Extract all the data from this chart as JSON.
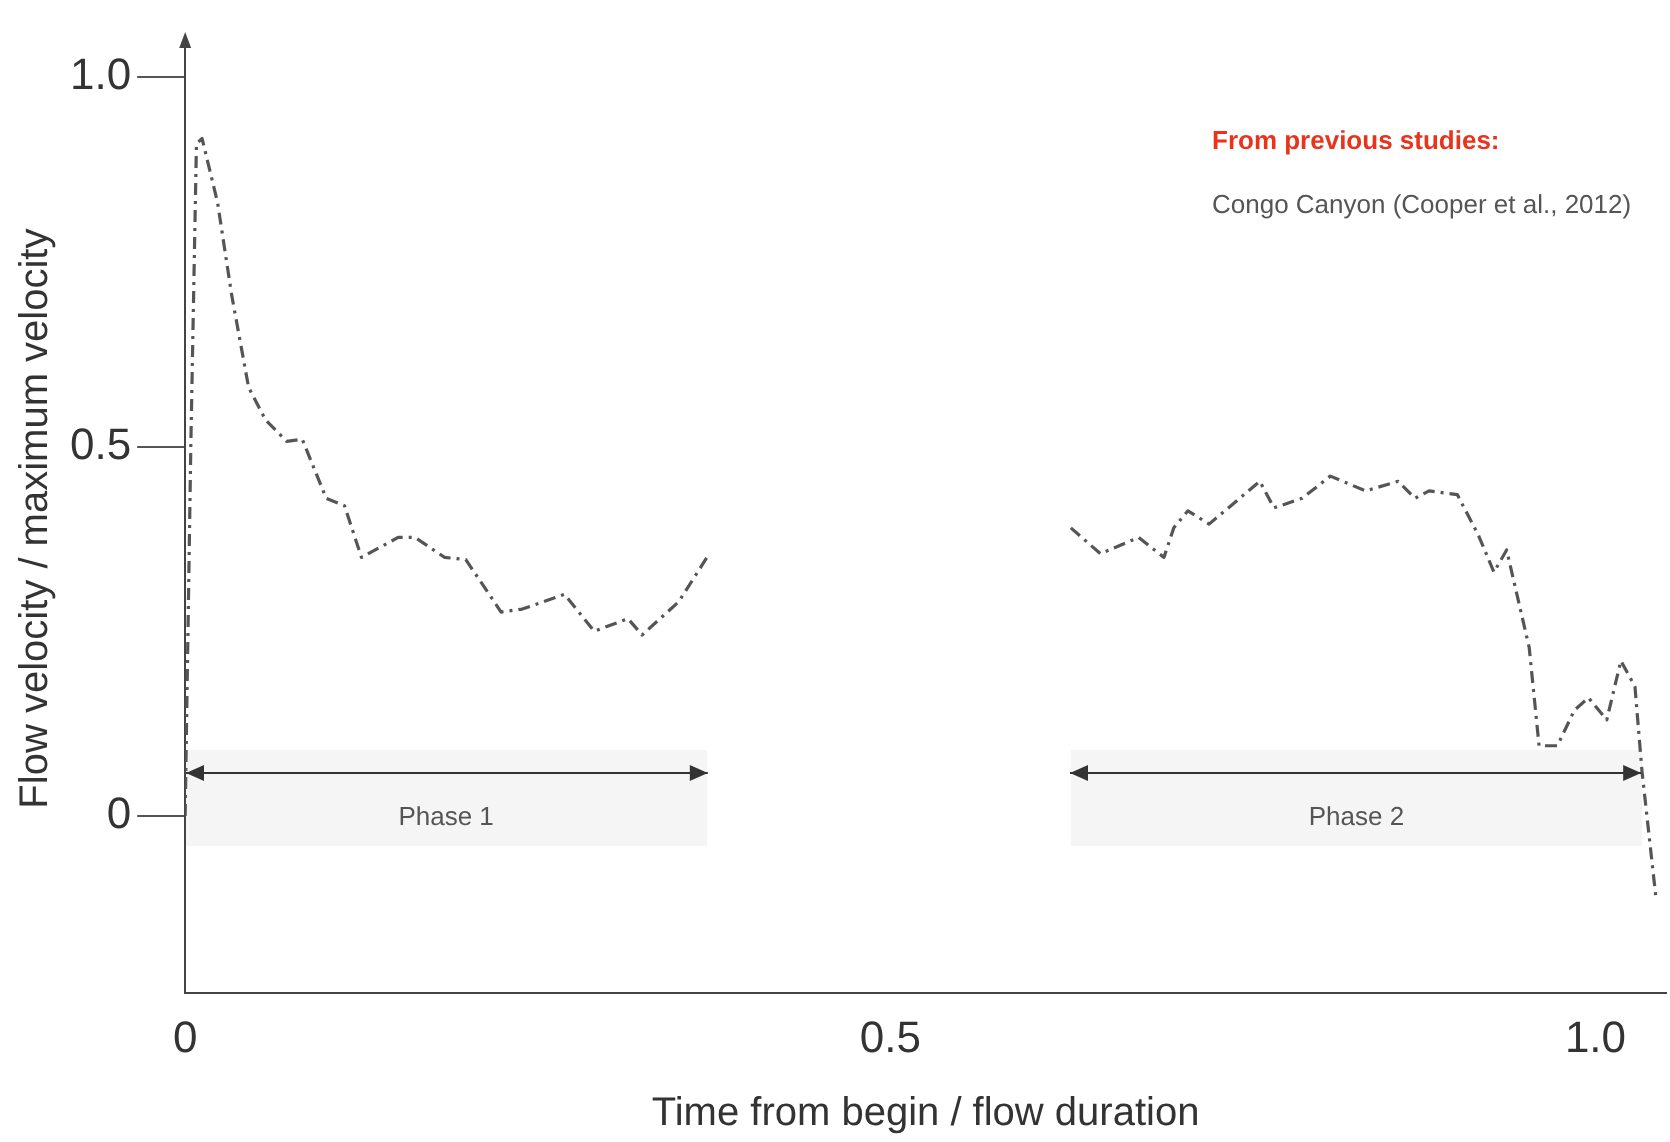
{
  "chart_data": {
    "type": "line",
    "xlabel": "Time from begin / flow duration",
    "ylabel": "Flow velocity / maximum velocity",
    "xlim": [
      0,
      1.05
    ],
    "ylim": [
      -0.24,
      1.045
    ],
    "xticks": [
      {
        "value": 0,
        "label": "0"
      },
      0.5,
      {
        "value": 1,
        "label": "1.0"
      }
    ],
    "yticks": [
      {
        "value": 0,
        "label": "0"
      },
      0.5,
      {
        "value": 1,
        "label": "1.0"
      }
    ],
    "grid": false,
    "legend": false,
    "line_style": "dashed",
    "marker": "none",
    "series": [
      {
        "color": "#555555",
        "x": [
          0,
          0.004,
          0.008,
          0.012,
          0.023,
          0.033,
          0.045,
          0.057,
          0.072,
          0.083,
          0.1,
          0.113,
          0.125,
          0.151,
          0.163,
          0.184,
          0.199,
          0.224,
          0.239,
          0.269,
          0.29,
          0.314,
          0.324,
          0.35,
          0.37,
          0.5,
          0.628,
          0.649,
          0.676,
          0.694,
          0.701,
          0.711,
          0.726,
          0.762,
          0.772,
          0.792,
          0.812,
          0.837,
          0.86,
          0.872,
          0.882,
          0.902,
          0.917,
          0.928,
          0.937,
          0.953,
          0.96,
          0.973,
          0.985,
          0.995,
          1.008,
          1.018,
          1.028,
          1.033,
          1.043
        ],
        "values": [
          0,
          0.5,
          0.91,
          0.917,
          0.83,
          0.705,
          0.58,
          0.536,
          0.507,
          0.51,
          0.43,
          0.42,
          0.35,
          0.377,
          0.377,
          0.35,
          0.347,
          0.276,
          0.28,
          0.3,
          0.25,
          0.267,
          0.245,
          0.29,
          0.35,
          null,
          0.39,
          0.355,
          0.377,
          0.35,
          0.39,
          0.413,
          0.395,
          0.453,
          0.417,
          0.43,
          0.46,
          0.44,
          0.453,
          0.43,
          0.44,
          0.435,
          0.38,
          0.33,
          0.36,
          0.228,
          0.095,
          0.095,
          0.143,
          0.16,
          0.13,
          0.21,
          0.175,
          0.06,
          -0.113
        ]
      }
    ],
    "bands": [
      {
        "axis": "x",
        "from": 0,
        "to": 0.37,
        "label": "Phase 1"
      },
      {
        "axis": "x",
        "from": 0.628,
        "to": 1.033,
        "label": "Phase 2"
      }
    ],
    "annotations": [
      "From previous studies:",
      "Congo Canyon (Cooper et al., 2012)"
    ]
  }
}
